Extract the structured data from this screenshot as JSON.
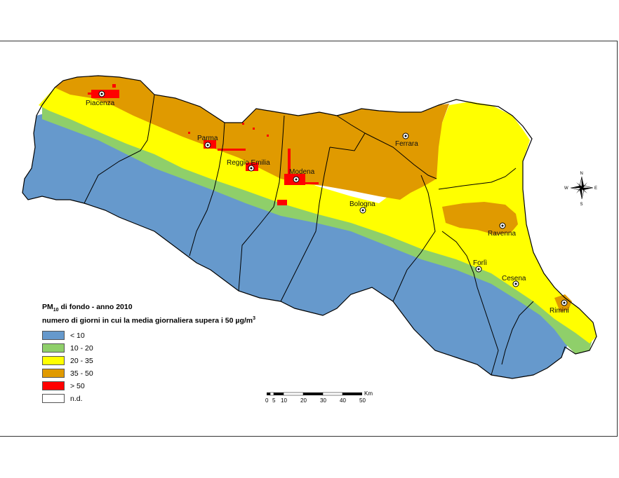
{
  "legend": {
    "title_main": "PM",
    "title_sub": "10",
    "title_rest": " di fondo - anno 2010",
    "subtitle": "numero di giorni in cui la media giornaliera supera i 50 µg/m",
    "subtitle_sup": "3",
    "classes": [
      {
        "label": "< 10",
        "color": "#6699cc"
      },
      {
        "label": "10 - 20",
        "color": "#8fcf6a"
      },
      {
        "label": "20 - 35",
        "color": "#ffff00"
      },
      {
        "label": "35 - 50",
        "color": "#e09a00"
      },
      {
        "label": "> 50",
        "color": "#ff0000"
      },
      {
        "label": "n.d.",
        "color": "#ffffff"
      }
    ]
  },
  "cities": [
    {
      "name": "Piacenza"
    },
    {
      "name": "Parma"
    },
    {
      "name": "Reggio Emilia"
    },
    {
      "name": "Modena"
    },
    {
      "name": "Bologna"
    },
    {
      "name": "Ferrara"
    },
    {
      "name": "Ravenna"
    },
    {
      "name": "Forlì"
    },
    {
      "name": "Cesena"
    },
    {
      "name": "Rimini"
    }
  ],
  "scale": {
    "unit": "Km",
    "ticks": [
      "0",
      "5",
      "10",
      "20",
      "30",
      "40",
      "50"
    ]
  },
  "compass": {
    "n": "N",
    "s": "S",
    "e": "E",
    "w": "W"
  }
}
